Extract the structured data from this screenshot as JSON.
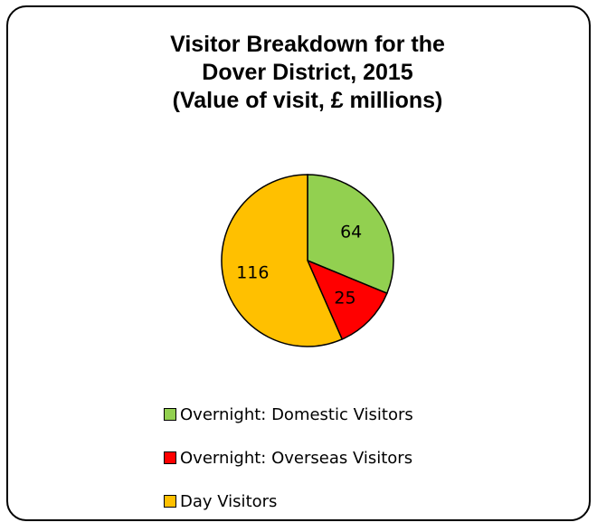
{
  "colors": {
    "domestic": "#92D050",
    "overseas": "#FF0000",
    "day": "#FFC000"
  },
  "chart_data": {
    "type": "pie",
    "title": [
      "Visitor Breakdown for the",
      "Dover District, 2015",
      "(Value of visit, £ millions)"
    ],
    "slices": [
      {
        "label": "Overnight: Domestic Visitors",
        "value": 64,
        "color": "#92D050"
      },
      {
        "label": "Overnight: Overseas Visitors",
        "value": 25,
        "color": "#FF0000"
      },
      {
        "label": "Day Visitors",
        "value": 116,
        "color": "#FFC000"
      }
    ],
    "data_labels": [
      "64",
      "25",
      "116"
    ],
    "legend_position": "bottom"
  }
}
